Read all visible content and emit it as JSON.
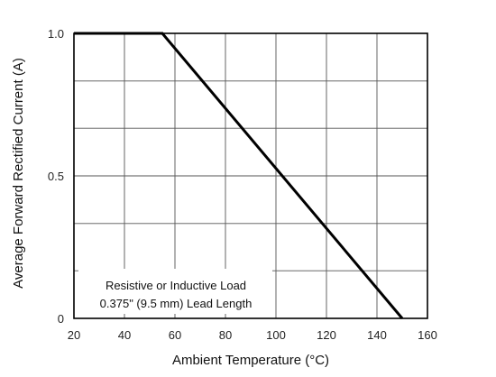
{
  "chart_data": {
    "type": "line",
    "title": "",
    "xlabel": "Ambient Temperature (°C)",
    "ylabel": "Average Forward Rectified Current (A)",
    "xlim": [
      20,
      160
    ],
    "ylim": [
      0,
      1.0
    ],
    "x_ticks": [
      20,
      40,
      60,
      80,
      100,
      120,
      140,
      160
    ],
    "x_tick_labels": [
      "20",
      "40",
      "60",
      "80",
      "100",
      "120",
      "140",
      "160"
    ],
    "y_ticks": [
      0,
      0.5,
      1.0
    ],
    "y_tick_labels": [
      "0",
      "0.5",
      "1.0"
    ],
    "y_minor_grid": [
      0,
      0.167,
      0.333,
      0.5,
      0.667,
      0.833,
      1.0
    ],
    "grid": true,
    "series": [
      {
        "x": [
          20,
          55,
          150
        ],
        "y": [
          1.0,
          1.0,
          0.0
        ],
        "color": "#000000"
      }
    ],
    "annotations": [
      "Resistive or Inductive Load",
      "0.375\" (9.5 mm) Lead Length"
    ]
  }
}
